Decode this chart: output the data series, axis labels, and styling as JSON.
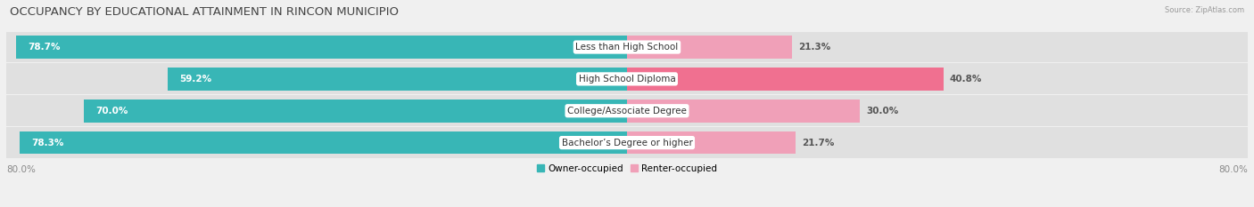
{
  "title": "OCCUPANCY BY EDUCATIONAL ATTAINMENT IN RINCON MUNICIPIO",
  "source": "Source: ZipAtlas.com",
  "categories": [
    "Less than High School",
    "High School Diploma",
    "College/Associate Degree",
    "Bachelor’s Degree or higher"
  ],
  "owner_pct": [
    78.7,
    59.2,
    70.0,
    78.3
  ],
  "renter_pct": [
    21.3,
    40.8,
    30.0,
    21.7
  ],
  "owner_color": "#38b6b6",
  "renter_color": "#f07090",
  "renter_color_light": "#f0a0b8",
  "bg_color": "#f0f0f0",
  "row_bg_color": "#e0e0e0",
  "title_fontsize": 9.5,
  "label_fontsize": 7.5,
  "pct_fontsize": 7.5,
  "bar_height": 0.72,
  "xlim": 80.0,
  "x_axis_label": "80.0%",
  "legend_labels": [
    "Owner-occupied",
    "Renter-occupied"
  ]
}
